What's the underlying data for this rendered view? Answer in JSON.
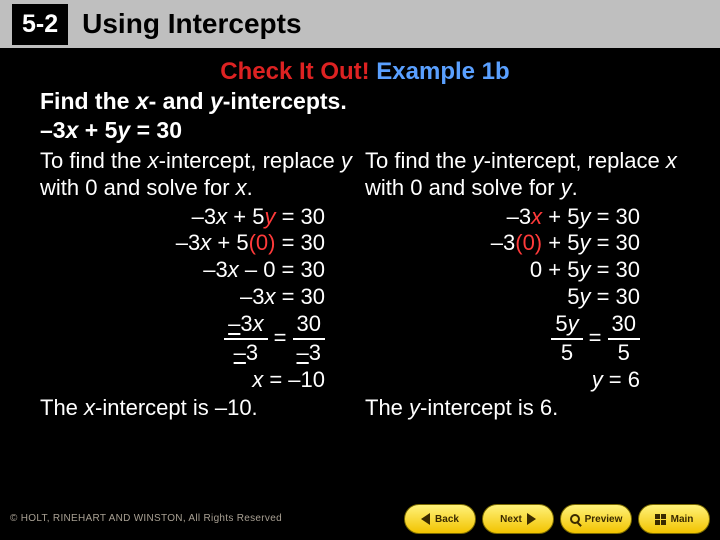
{
  "header": {
    "lesson_number": "5-2",
    "title": "Using Intercepts"
  },
  "content": {
    "check_prefix": "Check It Out!",
    "check_suffix": "Example 1b",
    "prompt_a": "Find the ",
    "prompt_b": "- and ",
    "prompt_c": "-intercepts.",
    "var_x": "x",
    "var_y": "y",
    "main_eq_a": "–3",
    "main_eq_b": " + 5",
    "main_eq_c": " = 30",
    "left": {
      "intro_a": "To find the ",
      "intro_b": "-intercept, replace ",
      "intro_c": " with 0 and solve for ",
      "s1a": "–3",
      "s1b": " + 5",
      "s1c": " = 30",
      "s2a": "–3",
      "s2b": " + 5",
      "s2c": "(0)",
      "s2d": " = 30",
      "s3a": "–3",
      "s3b": " – 0 = 30",
      "s4a": "–3",
      "s4b": "  = 30",
      "frac_l_top": "3",
      "frac_l_bot": "3",
      "frac_r_top": "30",
      "frac_r_bot": "3",
      "minus": "–",
      "s6": " = –10",
      "concl_a": "The ",
      "concl_b": "-intercept is –10."
    },
    "right": {
      "intro_a": "To find the ",
      "intro_b": "-intercept, replace ",
      "intro_c": " with 0 and solve for ",
      "s1a": "–3",
      "s1b": " + 5",
      "s1c": " = 30",
      "s2a": "–3",
      "s2b": "(0)",
      "s2c": " + 5",
      "s2d": " = 30",
      "s3a": "0 + 5",
      "s3b": " = 30",
      "s4a": "5",
      "s4b": " = 30",
      "frac_l_top": "5",
      "frac_l_bot": "5",
      "frac_r_top": "30",
      "frac_r_bot": "5",
      "s6": " = 6",
      "concl_a": "The ",
      "concl_b": "-intercept is 6."
    }
  },
  "footer": {
    "copyright": "© HOLT, RINEHART AND WINSTON, All Rights Reserved",
    "back": "Back",
    "next": "Next",
    "preview": "Preview",
    "main": "Main"
  },
  "colors": {
    "bg": "#000000",
    "header_bg": "#bfbfbf",
    "text": "#ffffff",
    "red": "#d22222",
    "blue": "#5aa0ff",
    "redvar": "#ff3a3a",
    "btn_grad_top": "#fff27a",
    "btn_grad_bot": "#f2c300",
    "btn_text": "#3a2a00"
  }
}
